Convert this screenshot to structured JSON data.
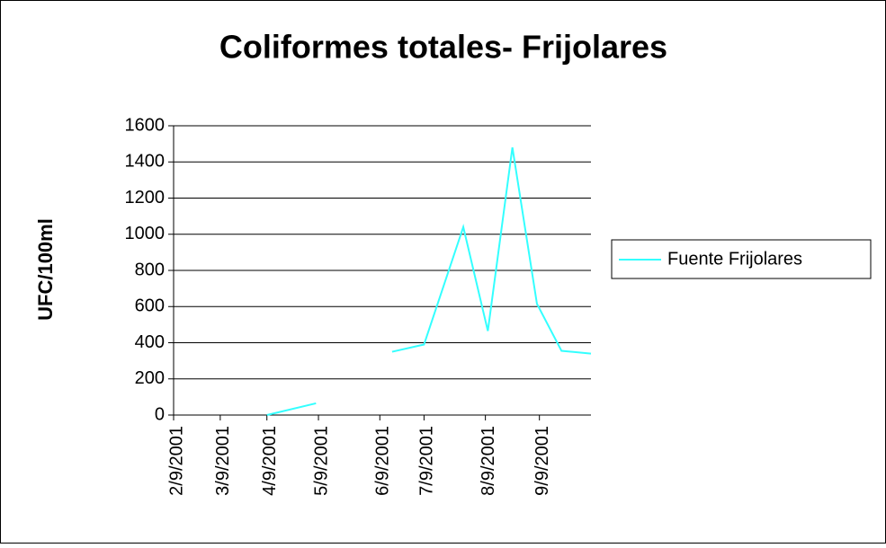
{
  "chart_data": {
    "type": "line",
    "title": "Coliformes totales- Frijolares",
    "y_label": "UFC/100ml",
    "x": [
      3.8,
      5.8,
      7.3,
      8.9,
      10.2,
      11.8,
      12.8,
      13.8,
      14.8,
      15.8,
      17
    ],
    "series": [
      {
        "name": "Fuente Frijolares",
        "color": "#33ffff",
        "values": [
          0,
          65,
          null,
          350,
          390,
          1040,
          465,
          1480,
          615,
          355,
          340
        ]
      }
    ],
    "xlim": [
      0,
      17
    ],
    "xticks": [
      {
        "value": 0,
        "label": "2/9/2001"
      },
      {
        "value": 1.9,
        "label": "3/9/2001"
      },
      {
        "value": 3.8,
        "label": "4/9/2001"
      },
      {
        "value": 5.9,
        "label": "5/9/2001"
      },
      {
        "value": 8.4,
        "label": "6/9/2001"
      },
      {
        "value": 10.2,
        "label": "7/9/2001"
      },
      {
        "value": 12.7,
        "label": "8/9/2001"
      },
      {
        "value": 14.9,
        "label": "9/9/2001"
      }
    ],
    "ylim": [
      0,
      1600
    ],
    "yticks": [
      0,
      200,
      400,
      600,
      800,
      1000,
      1200,
      1400,
      1600
    ],
    "grid": true,
    "legend": "right"
  }
}
